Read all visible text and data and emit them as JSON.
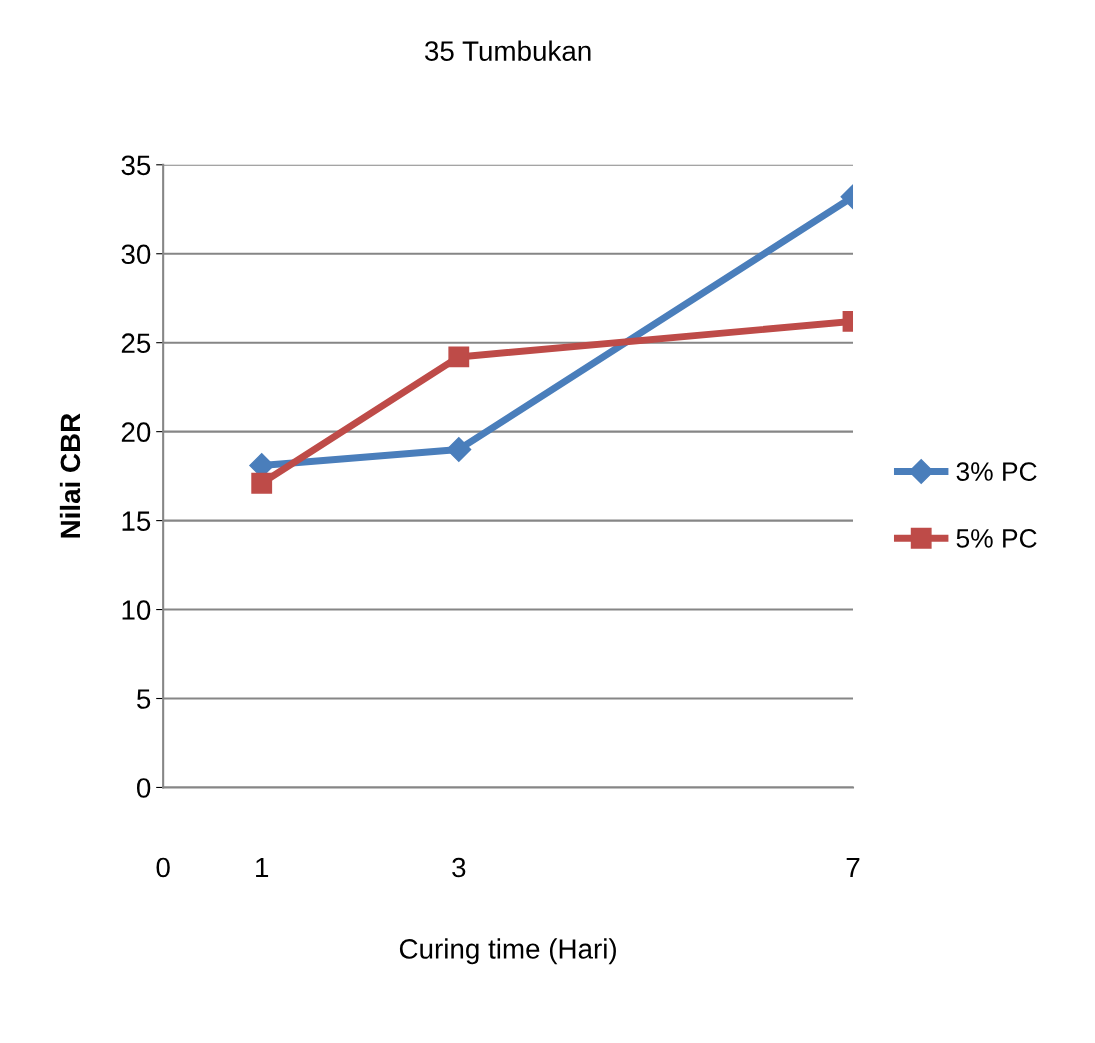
{
  "chart_data": {
    "type": "line",
    "title": "35 Tumbukan",
    "xlabel": "Curing time (Hari)",
    "ylabel": "Nilai CBR",
    "x": [
      1,
      3,
      7
    ],
    "series": [
      {
        "name": "3% PC",
        "color": "#4a7ebb",
        "marker": "diamond",
        "values": [
          18.1,
          19.0,
          33.2
        ]
      },
      {
        "name": "5% PC",
        "color": "#be4b48",
        "marker": "square",
        "values": [
          17.1,
          24.2,
          26.2
        ]
      }
    ],
    "xlim": [
      0,
      7
    ],
    "xticks": [
      0,
      1,
      3,
      7
    ],
    "ylim": [
      0,
      35
    ],
    "yticks": [
      0,
      5,
      10,
      15,
      20,
      25,
      30,
      35
    ],
    "grid": "y",
    "legend": "right"
  }
}
